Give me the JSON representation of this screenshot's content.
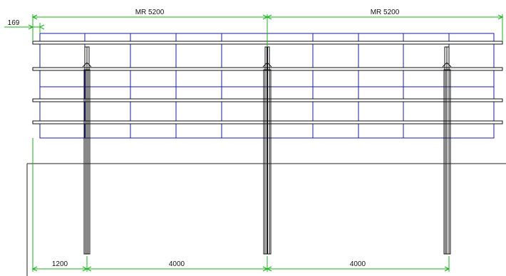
{
  "dimensions": {
    "top_left_span": "MR 5200",
    "top_right_span": "MR 5200",
    "top_offset": "169",
    "bottom_offset": "1200",
    "bottom_span_1": "4000",
    "bottom_span_2": "4000"
  },
  "colors": {
    "module_grid": "#1a1aa0",
    "dimension_lines": "#1db21d",
    "structure": "#111111",
    "ground": "#222222"
  }
}
